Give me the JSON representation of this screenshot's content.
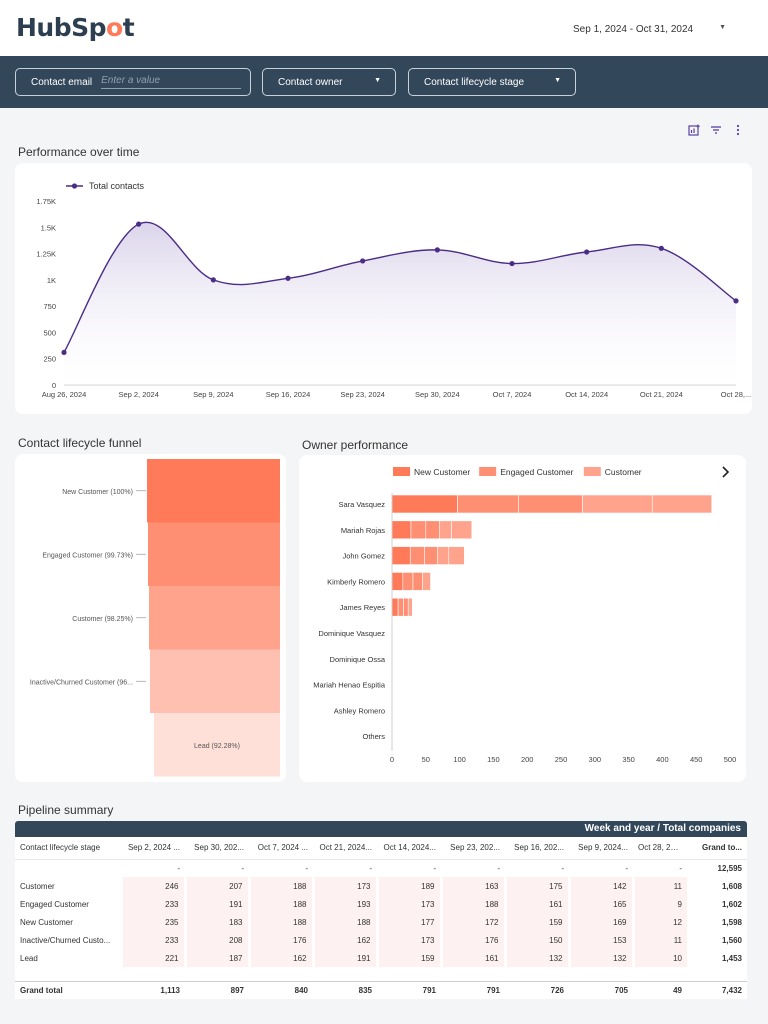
{
  "header": {
    "logo_main": "HubSp",
    "logo_spot": "o",
    "logo_end": "t",
    "date_range": "Sep 1, 2024 - Oct 31, 2024"
  },
  "filters": {
    "email_label": "Contact email",
    "email_placeholder": "Enter a value",
    "owner_label": "Contact owner",
    "lifecycle_label": "Contact lifecycle stage"
  },
  "icons": [
    "add-chart-icon",
    "filter-icon",
    "more-vert-icon",
    "chevron-right-icon",
    "chevron-down-icon"
  ],
  "colors": {
    "brand_dark": "#33475b",
    "line": "#4b2c86",
    "new_customer": "#ff7a59",
    "engaged_customer": "#ff8f73",
    "customer": "#ffa38d",
    "inactive": "#ffc0b1",
    "lead": "#ffe0d8"
  },
  "sections": {
    "performance": "Performance over time",
    "funnel": "Contact lifecycle funnel",
    "owner": "Owner performance",
    "pipeline": "Pipeline summary"
  },
  "chart_data": [
    {
      "type": "line",
      "id": "performance",
      "series": [
        {
          "name": "Total contacts",
          "values": [
            310,
            1530,
            1000,
            1015,
            1180,
            1285,
            1155,
            1265,
            1300,
            800
          ]
        }
      ],
      "x": [
        "Aug 26, 2024",
        "Sep 2, 2024",
        "Sep 9, 2024",
        "Sep 16, 2024",
        "Sep 23, 2024",
        "Sep 30, 2024",
        "Oct 7, 2024",
        "Oct 14, 2024",
        "Oct 21, 2024",
        "Oct 28,..."
      ],
      "y_ticks": [
        "0",
        "250",
        "500",
        "750",
        "1K",
        "1.25K",
        "1.5K",
        "1.75K"
      ],
      "ylim": [
        0,
        1750
      ],
      "legend_position": "top-left",
      "area_fill": true
    },
    {
      "type": "funnel",
      "id": "funnel",
      "stages": [
        {
          "label": "New Customer (100%)",
          "value": 100
        },
        {
          "label": "Engaged Customer (99.73%)",
          "value": 99.73
        },
        {
          "label": "Customer (98.25%)",
          "value": 98.25
        },
        {
          "label": "Inactive/Churned Customer (96...",
          "value": 96
        },
        {
          "label": "Lead (92.28%)",
          "value": 92.28
        }
      ]
    },
    {
      "type": "bar",
      "id": "owner",
      "orientation": "horizontal",
      "stacked": true,
      "legend": [
        "New Customer",
        "Engaged Customer",
        "Customer"
      ],
      "categories": [
        "Sara Vasquez",
        "Mariah Rojas",
        "John Gomez",
        "Kimberly Romero",
        "James Reyes",
        "Dominique Vasquez",
        "Dominique Ossa",
        "Mariah Henao Espitia",
        "Ashley Romero",
        "Others"
      ],
      "segments": [
        [
          97,
          90,
          95,
          103,
          88
        ],
        [
          28,
          22,
          20,
          18,
          30
        ],
        [
          27,
          21,
          19,
          17,
          23
        ],
        [
          16,
          15,
          14,
          12
        ],
        [
          9,
          8,
          7,
          6
        ]
      ],
      "x_ticks": [
        "0",
        "50",
        "100",
        "150",
        "200",
        "250",
        "300",
        "350",
        "400",
        "450",
        "500"
      ],
      "xlim": [
        0,
        500
      ]
    }
  ],
  "pipeline": {
    "header_title": "Week and year / Total companies",
    "first_col_header": "Contact lifecycle stage",
    "columns": [
      "Sep 2, 2024 ...",
      "Sep 30, 202...",
      "Oct 7, 2024 ...",
      "Oct 21, 2024...",
      "Oct 14, 2024...",
      "Sep 23, 202...",
      "Sep 16, 202...",
      "Sep 9, 2024...",
      "Oct 28, 202...",
      "Grand to..."
    ],
    "rows": [
      {
        "label": "",
        "values": [
          "-",
          "-",
          "-",
          "-",
          "-",
          "-",
          "-",
          "-",
          "-",
          "12,595"
        ]
      },
      {
        "label": "Customer",
        "values": [
          "246",
          "207",
          "188",
          "173",
          "189",
          "163",
          "175",
          "142",
          "11",
          "1,608"
        ]
      },
      {
        "label": "Engaged Customer",
        "values": [
          "233",
          "191",
          "188",
          "193",
          "173",
          "188",
          "161",
          "165",
          "9",
          "1,602"
        ]
      },
      {
        "label": "New Customer",
        "values": [
          "235",
          "183",
          "188",
          "188",
          "177",
          "172",
          "159",
          "169",
          "12",
          "1,598"
        ]
      },
      {
        "label": "Inactive/Churned Custo...",
        "values": [
          "233",
          "208",
          "176",
          "162",
          "173",
          "176",
          "150",
          "153",
          "11",
          "1,560"
        ]
      },
      {
        "label": "Lead",
        "values": [
          "221",
          "187",
          "162",
          "191",
          "159",
          "161",
          "132",
          "132",
          "10",
          "1,453"
        ]
      }
    ],
    "total": {
      "label": "Grand total",
      "values": [
        "1,113",
        "897",
        "840",
        "835",
        "791",
        "791",
        "726",
        "705",
        "49",
        "7,432"
      ]
    }
  }
}
